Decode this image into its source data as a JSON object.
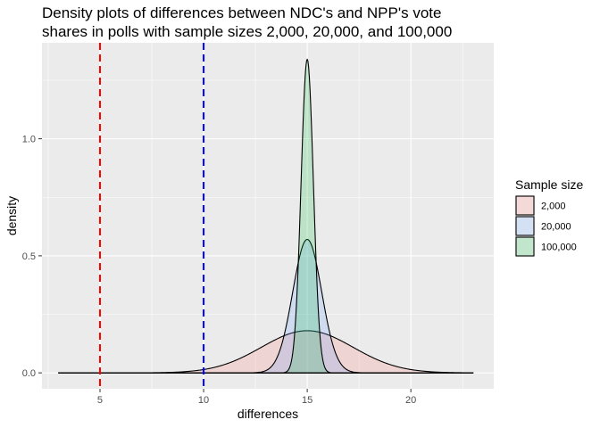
{
  "chart_data": {
    "type": "area",
    "title_lines": [
      "Density plots of differences between NDC's and NPP's vote",
      "shares in polls with sample sizes 2,000, 20,000, and 100,000"
    ],
    "xlabel": "differences",
    "ylabel": "density",
    "xlim": [
      2.2,
      24.0
    ],
    "ylim": [
      -0.068,
      1.41
    ],
    "x_ticks": [
      5,
      10,
      15,
      20
    ],
    "x_tick_labels": [
      "5",
      "10",
      "15",
      "20"
    ],
    "y_ticks": [
      0.0,
      0.5,
      1.0
    ],
    "y_tick_labels": [
      "0.0",
      "0.5",
      "1.0"
    ],
    "x_range_drawn": [
      3,
      23
    ],
    "grid": true,
    "legend": {
      "title": "Sample size",
      "position": "right"
    },
    "series": [
      {
        "name": "2,000",
        "mean": 15.0,
        "peak_density": 0.18,
        "fill": "#F8766D"
      },
      {
        "name": "20,000",
        "mean": 15.0,
        "peak_density": 0.57,
        "fill": "#619CFF"
      },
      {
        "name": "100,000",
        "mean": 15.0,
        "peak_density": 1.34,
        "fill": "#00BA38"
      }
    ],
    "vlines": [
      {
        "x": 5,
        "color": "#FF0000",
        "linetype": "dashed"
      },
      {
        "x": 10,
        "color": "#0000FF",
        "linetype": "dashed"
      }
    ]
  }
}
